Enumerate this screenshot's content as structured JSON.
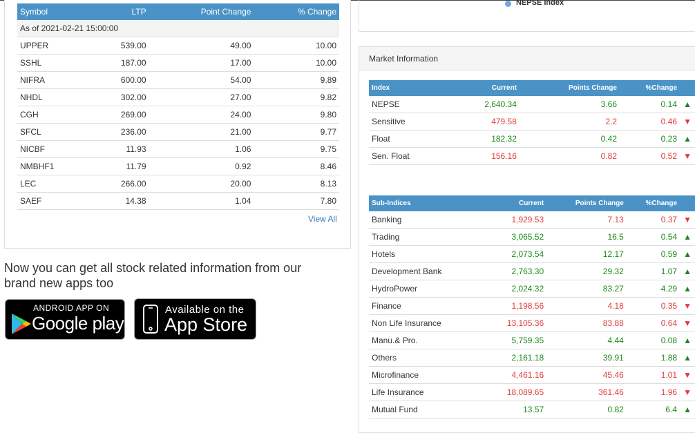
{
  "gainers": {
    "headers": {
      "symbol": "Symbol",
      "ltp": "LTP",
      "point_change": "Point Change",
      "pct_change": "% Change"
    },
    "as_of": "As of 2021-02-21 15:00:00",
    "rows": [
      {
        "symbol": "UPPER",
        "ltp": "539.00",
        "point": "49.00",
        "pct": "10.00"
      },
      {
        "symbol": "SSHL",
        "ltp": "187.00",
        "point": "17.00",
        "pct": "10.00"
      },
      {
        "symbol": "NIFRA",
        "ltp": "600.00",
        "point": "54.00",
        "pct": "9.89"
      },
      {
        "symbol": "NHDL",
        "ltp": "302.00",
        "point": "27.00",
        "pct": "9.82"
      },
      {
        "symbol": "CGH",
        "ltp": "269.00",
        "point": "24.00",
        "pct": "9.80"
      },
      {
        "symbol": "SFCL",
        "ltp": "236.00",
        "point": "21.00",
        "pct": "9.77"
      },
      {
        "symbol": "NICBF",
        "ltp": "11.93",
        "point": "1.06",
        "pct": "9.75"
      },
      {
        "symbol": "NMBHF1",
        "ltp": "11.79",
        "point": "0.92",
        "pct": "8.46"
      },
      {
        "symbol": "LEC",
        "ltp": "266.00",
        "point": "20.00",
        "pct": "8.13"
      },
      {
        "symbol": "SAEF",
        "ltp": "14.38",
        "point": "1.04",
        "pct": "7.80"
      }
    ],
    "view_all": "View All"
  },
  "promo": {
    "text": "Now you can get all stock related information from our brand new apps too",
    "google_line1": "ANDROID APP ON",
    "google_line2": "Google play",
    "apple_line1": "Available on the",
    "apple_line2": "App Store"
  },
  "chart_legend": {
    "label": "NEPSE Index",
    "color": "#6fa8dc"
  },
  "market_info": {
    "title": "Market Information",
    "index_headers": {
      "name": "Index",
      "current": "Current",
      "points": "Points Change",
      "pct": "%Change"
    },
    "indices": [
      {
        "name": "NEPSE",
        "current": "2,640.34",
        "points": "3.66",
        "pct": "0.14",
        "dir": "up"
      },
      {
        "name": "Sensitive",
        "current": "479.58",
        "points": "2.2",
        "pct": "0.46",
        "dir": "down"
      },
      {
        "name": "Float",
        "current": "182.32",
        "points": "0.42",
        "pct": "0.23",
        "dir": "up"
      },
      {
        "name": "Sen. Float",
        "current": "156.16",
        "points": "0.82",
        "pct": "0.52",
        "dir": "down"
      }
    ],
    "sub_headers": {
      "name": "Sub-Indices",
      "current": "Current",
      "points": "Points Change",
      "pct": "%Change"
    },
    "sub_indices": [
      {
        "name": "Banking",
        "current": "1,929.53",
        "points": "7.13",
        "pct": "0.37",
        "dir": "down"
      },
      {
        "name": "Trading",
        "current": "3,065.52",
        "points": "16.5",
        "pct": "0.54",
        "dir": "up"
      },
      {
        "name": "Hotels",
        "current": "2,073.54",
        "points": "12.17",
        "pct": "0.59",
        "dir": "up"
      },
      {
        "name": "Development Bank",
        "current": "2,763.30",
        "points": "29.32",
        "pct": "1.07",
        "dir": "up"
      },
      {
        "name": "HydroPower",
        "current": "2,024.32",
        "points": "83.27",
        "pct": "4.29",
        "dir": "up"
      },
      {
        "name": "Finance",
        "current": "1,198.56",
        "points": "4.18",
        "pct": "0.35",
        "dir": "down"
      },
      {
        "name": "Non Life Insurance",
        "current": "13,105.36",
        "points": "83.88",
        "pct": "0.64",
        "dir": "down"
      },
      {
        "name": "Manu.& Pro.",
        "current": "5,759.35",
        "points": "4.44",
        "pct": "0.08",
        "dir": "up"
      },
      {
        "name": "Others",
        "current": "2,161.18",
        "points": "39.91",
        "pct": "1.88",
        "dir": "up"
      },
      {
        "name": "Microfinance",
        "current": "4,461.16",
        "points": "45.46",
        "pct": "1.01",
        "dir": "down"
      },
      {
        "name": "Life Insurance",
        "current": "18,089.65",
        "points": "361.46",
        "pct": "1.96",
        "dir": "down"
      },
      {
        "name": "Mutual Fund",
        "current": "13.57",
        "points": "0.82",
        "pct": "6.4",
        "dir": "up"
      }
    ]
  },
  "colors": {
    "header_blue": "#4b93c6",
    "up": "#1a8a1a",
    "down": "#e23b3b",
    "link": "#3a7ab8"
  }
}
